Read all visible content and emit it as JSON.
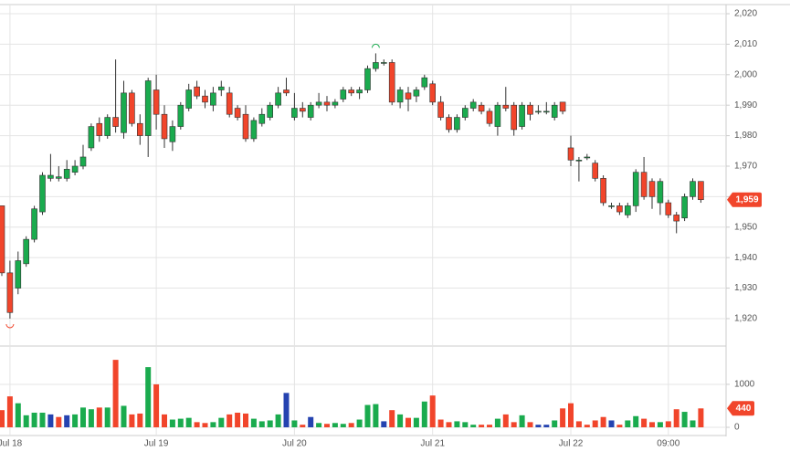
{
  "chart_data": {
    "type": "candlestick",
    "categories": [
      null,
      "Jul 18",
      null,
      null,
      null,
      null,
      null,
      null,
      null,
      null,
      null,
      null,
      null,
      null,
      null,
      null,
      null,
      null,
      null,
      "Jul 19",
      null,
      null,
      null,
      null,
      null,
      null,
      null,
      null,
      null,
      null,
      null,
      null,
      null,
      null,
      null,
      null,
      "Jul 20",
      null,
      null,
      null,
      null,
      null,
      null,
      null,
      null,
      null,
      null,
      null,
      null,
      null,
      null,
      null,
      null,
      "Jul 21",
      null,
      null,
      null,
      null,
      null,
      null,
      null,
      null,
      null,
      null,
      null,
      null,
      null,
      null,
      null,
      null,
      "Jul 22",
      null,
      null,
      null,
      null,
      null,
      null,
      null,
      null,
      null,
      null,
      null,
      "09:00",
      null,
      null,
      null,
      null
    ],
    "open": [
      1957,
      1935,
      1930,
      1938,
      1946,
      1955,
      1966,
      1966,
      1966,
      1968,
      1970,
      1976,
      1984,
      1980,
      1986,
      1981,
      1994,
      1984,
      1980,
      1995,
      1987,
      1978,
      1983,
      1989,
      1996,
      1993,
      1990,
      1995,
      1994,
      1989,
      1987,
      1979,
      1984,
      1986,
      1990,
      1995,
      1986,
      1989,
      1986,
      1990,
      1991,
      1990,
      1992,
      1995,
      1994,
      1995,
      2002,
      2004,
      2004,
      1991,
      1994,
      1993,
      1996,
      1997,
      1991,
      1986,
      1982,
      1986,
      1989,
      1990,
      1988,
      1983,
      1990,
      1990,
      1983,
      1990,
      1988,
      1988,
      1986,
      1991,
      1976,
      1972,
      1973,
      1971,
      1966,
      1957,
      1957,
      1954,
      1957,
      1968,
      1965,
      1958,
      1958,
      1954,
      1953,
      1960,
      1965
    ],
    "high": [
      1957,
      1939,
      1942,
      1947,
      1957,
      1968,
      1974,
      1970,
      1972,
      1972,
      1977,
      1984,
      1986,
      1987,
      2005,
      1998,
      1995,
      1987,
      1999,
      2000,
      1990,
      1985,
      1991,
      1997,
      1998,
      1995,
      1996,
      1998,
      1996,
      1990,
      1990,
      1986,
      1989,
      1991,
      1996,
      1999,
      1994,
      1991,
      1991,
      1994,
      1993,
      1992,
      1996,
      1996,
      1996,
      2003,
      2007,
      2005,
      2005,
      1996,
      1996,
      1996,
      2000,
      1998,
      1993,
      1987,
      1987,
      1990,
      1992,
      1991,
      1989,
      1991,
      1996,
      1991,
      1991,
      1991,
      1990,
      1991,
      1991,
      1991,
      1980,
      1973,
      1974,
      1972,
      1967,
      1958,
      1958,
      1958,
      1969,
      1973,
      1966,
      1966,
      1959,
      1955,
      1961,
      1966,
      1965
    ],
    "low": [
      1934,
      1920,
      1928,
      1937,
      1945,
      1954,
      1965,
      1965,
      1965,
      1967,
      1969,
      1975,
      1978,
      1979,
      1981,
      1979,
      1983,
      1977,
      1973,
      1982,
      1976,
      1975,
      1982,
      1988,
      1992,
      1989,
      1988,
      1993,
      1986,
      1985,
      1978,
      1978,
      1983,
      1985,
      1989,
      1993,
      1985,
      1986,
      1985,
      1989,
      1988,
      1989,
      1991,
      1993,
      1992,
      1994,
      2001,
      2003,
      1990,
      1989,
      1988,
      1991,
      1995,
      1990,
      1985,
      1981,
      1981,
      1985,
      1988,
      1987,
      1983,
      1980,
      1988,
      1980,
      1982,
      1985,
      1987,
      1987,
      1985,
      1987,
      1970,
      1965,
      1972,
      1965,
      1957,
      1956,
      1954,
      1953,
      1955,
      1959,
      1956,
      1954,
      1953,
      1948,
      1952,
      1959,
      1958
    ],
    "close": [
      1935,
      1922,
      1939,
      1946,
      1956,
      1967,
      1967,
      1966.5,
      1969,
      1970,
      1973,
      1983,
      1980,
      1986,
      1983,
      1994,
      1984,
      1980,
      1998,
      1987,
      1979,
      1983,
      1990,
      1995,
      1993,
      1991,
      1994,
      1996,
      1987,
      1986,
      1979,
      1985,
      1987,
      1990,
      1994,
      1994,
      1989,
      1988,
      1990,
      1991,
      1990,
      1991,
      1995,
      1994,
      1995,
      2002,
      2004,
      2004,
      1991,
      1995,
      1992,
      1995,
      1999,
      1991,
      1986,
      1982,
      1986,
      1989,
      1991,
      1988,
      1984,
      1990,
      1989,
      1982,
      1990,
      1987,
      1988,
      1988,
      1990,
      1988,
      1972,
      1972,
      1973,
      1966,
      1958,
      1957,
      1955,
      1957,
      1968,
      1960,
      1960,
      1965,
      1954,
      1952,
      1960,
      1965,
      1959
    ],
    "volume": [
      400,
      720,
      560,
      280,
      340,
      340,
      300,
      240,
      280,
      300,
      460,
      420,
      460,
      460,
      1570,
      500,
      300,
      320,
      1400,
      1000,
      300,
      180,
      200,
      220,
      120,
      100,
      120,
      220,
      300,
      340,
      320,
      200,
      140,
      160,
      300,
      800,
      160,
      60,
      240,
      100,
      80,
      100,
      80,
      100,
      180,
      520,
      540,
      140,
      400,
      300,
      220,
      220,
      600,
      740,
      180,
      120,
      140,
      120,
      60,
      60,
      60,
      200,
      300,
      120,
      280,
      120,
      60,
      60,
      160,
      440,
      560,
      140,
      60,
      160,
      240,
      160,
      60,
      160,
      260,
      200,
      120,
      120,
      140,
      420,
      360,
      160,
      440
    ],
    "volume_colors": [
      "#f1452b",
      "#f1452b",
      "#1aab4e",
      "#1aab4e",
      "#1aab4e",
      "#1aab4e",
      "#2543b0",
      "#f1452b",
      "#2543b0",
      "#1aab4e",
      "#1aab4e",
      "#1aab4e",
      "#f1452b",
      "#1aab4e",
      "#f1452b",
      "#1aab4e",
      "#f1452b",
      "#f1452b",
      "#1aab4e",
      "#f1452b",
      "#f1452b",
      "#1aab4e",
      "#1aab4e",
      "#1aab4e",
      "#f1452b",
      "#f1452b",
      "#1aab4e",
      "#1aab4e",
      "#f1452b",
      "#f1452b",
      "#f1452b",
      "#1aab4e",
      "#1aab4e",
      "#1aab4e",
      "#1aab4e",
      "#2543b0",
      "#1aab4e",
      "#f1452b",
      "#2543b0",
      "#1aab4e",
      "#f1452b",
      "#1aab4e",
      "#1aab4e",
      "#f1452b",
      "#1aab4e",
      "#1aab4e",
      "#1aab4e",
      "#2543b0",
      "#f1452b",
      "#1aab4e",
      "#f1452b",
      "#1aab4e",
      "#1aab4e",
      "#f1452b",
      "#f1452b",
      "#f1452b",
      "#1aab4e",
      "#1aab4e",
      "#1aab4e",
      "#f1452b",
      "#f1452b",
      "#1aab4e",
      "#f1452b",
      "#f1452b",
      "#1aab4e",
      "#f1452b",
      "#2543b0",
      "#2543b0",
      "#1aab4e",
      "#f1452b",
      "#f1452b",
      "#f1452b",
      "#f1452b",
      "#f1452b",
      "#f1452b",
      "#2543b0",
      "#f1452b",
      "#1aab4e",
      "#1aab4e",
      "#f1452b",
      "#f1452b",
      "#1aab4e",
      "#f1452b",
      "#f1452b",
      "#1aab4e",
      "#1aab4e",
      "#f1452b"
    ],
    "up_color": "#1aab4e",
    "down_color": "#f1452b",
    "ylim": [
      1911.6,
      2023
    ],
    "yticks": [
      {
        "value": 1920,
        "label": "1,920"
      },
      {
        "value": 1930,
        "label": "1,930"
      },
      {
        "value": 1940,
        "label": "1,940"
      },
      {
        "value": 1950,
        "label": "1,950"
      },
      {
        "value": 1960,
        "label": "1,960"
      },
      {
        "value": 1970,
        "label": "1,970"
      },
      {
        "value": 1980,
        "label": "1,980"
      },
      {
        "value": 1990,
        "label": "1,990"
      },
      {
        "value": 2000,
        "label": "2,000"
      },
      {
        "value": 2010,
        "label": "2,010"
      },
      {
        "value": 2020,
        "label": "2,020"
      }
    ],
    "volume_ylim": [
      0,
      1870
    ],
    "volume_yticks": [
      0,
      1000
    ],
    "last_price": {
      "value": 1959,
      "label": "1,959"
    },
    "last_volume": 440,
    "grid": true
  }
}
